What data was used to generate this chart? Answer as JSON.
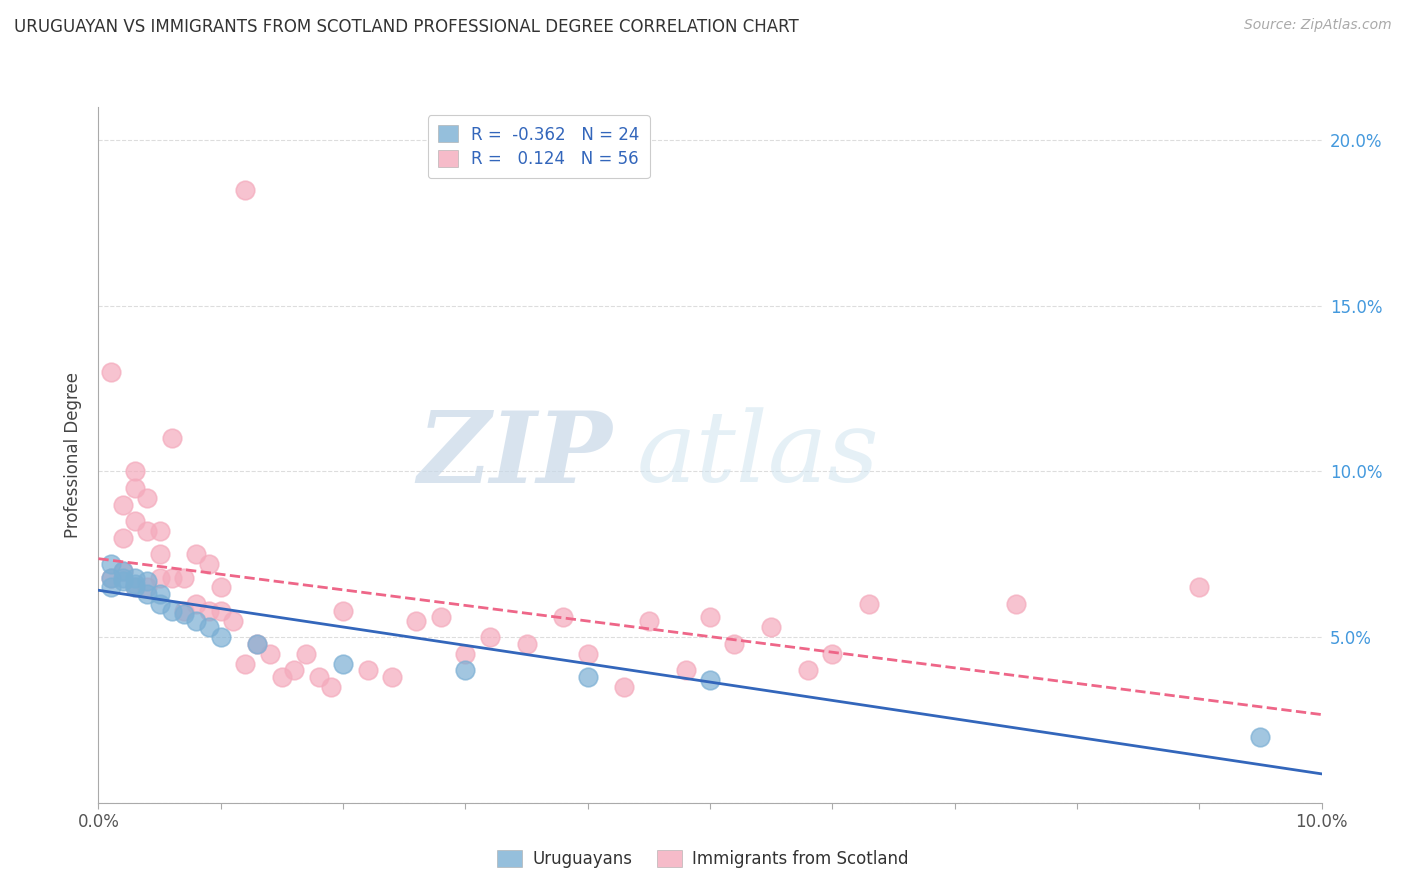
{
  "title": "URUGUAYAN VS IMMIGRANTS FROM SCOTLAND PROFESSIONAL DEGREE CORRELATION CHART",
  "source": "Source: ZipAtlas.com",
  "ylabel": "Professional Degree",
  "xlim": [
    0.0,
    0.1
  ],
  "ylim": [
    0.0,
    0.21
  ],
  "uruguayan_color": "#7BAFD4",
  "scotland_color": "#F4AABC",
  "uruguayan_line_color": "#3366BB",
  "scotland_line_color": "#EE6688",
  "legend_r_uruguayan": "-0.362",
  "legend_n_uruguayan": "24",
  "legend_r_scotland": "0.124",
  "legend_n_scotland": "56",
  "uruguayan_x": [
    0.001,
    0.001,
    0.001,
    0.002,
    0.002,
    0.002,
    0.003,
    0.003,
    0.003,
    0.004,
    0.004,
    0.005,
    0.005,
    0.006,
    0.007,
    0.008,
    0.009,
    0.01,
    0.013,
    0.02,
    0.03,
    0.04,
    0.05,
    0.095
  ],
  "uruguayan_y": [
    0.065,
    0.068,
    0.072,
    0.067,
    0.068,
    0.07,
    0.065,
    0.066,
    0.068,
    0.063,
    0.067,
    0.06,
    0.063,
    0.058,
    0.057,
    0.055,
    0.053,
    0.05,
    0.048,
    0.042,
    0.04,
    0.038,
    0.037,
    0.02
  ],
  "scotland_x": [
    0.001,
    0.001,
    0.002,
    0.002,
    0.002,
    0.003,
    0.003,
    0.003,
    0.003,
    0.004,
    0.004,
    0.004,
    0.005,
    0.005,
    0.005,
    0.006,
    0.006,
    0.007,
    0.007,
    0.008,
    0.008,
    0.009,
    0.009,
    0.01,
    0.01,
    0.011,
    0.012,
    0.012,
    0.013,
    0.014,
    0.015,
    0.016,
    0.017,
    0.018,
    0.019,
    0.02,
    0.022,
    0.024,
    0.026,
    0.028,
    0.03,
    0.032,
    0.035,
    0.038,
    0.04,
    0.043,
    0.045,
    0.048,
    0.05,
    0.052,
    0.055,
    0.058,
    0.06,
    0.063,
    0.075,
    0.09
  ],
  "scotland_y": [
    0.13,
    0.068,
    0.07,
    0.08,
    0.09,
    0.065,
    0.085,
    0.095,
    0.1,
    0.065,
    0.082,
    0.092,
    0.068,
    0.075,
    0.082,
    0.068,
    0.11,
    0.058,
    0.068,
    0.06,
    0.075,
    0.058,
    0.072,
    0.058,
    0.065,
    0.055,
    0.042,
    0.185,
    0.048,
    0.045,
    0.038,
    0.04,
    0.045,
    0.038,
    0.035,
    0.058,
    0.04,
    0.038,
    0.055,
    0.056,
    0.045,
    0.05,
    0.048,
    0.056,
    0.045,
    0.035,
    0.055,
    0.04,
    0.056,
    0.048,
    0.053,
    0.04,
    0.045,
    0.06,
    0.06,
    0.065
  ],
  "watermark_zip": "ZIP",
  "watermark_atlas": "atlas",
  "background_color": "#FFFFFF",
  "grid_color": "#DDDDDD"
}
